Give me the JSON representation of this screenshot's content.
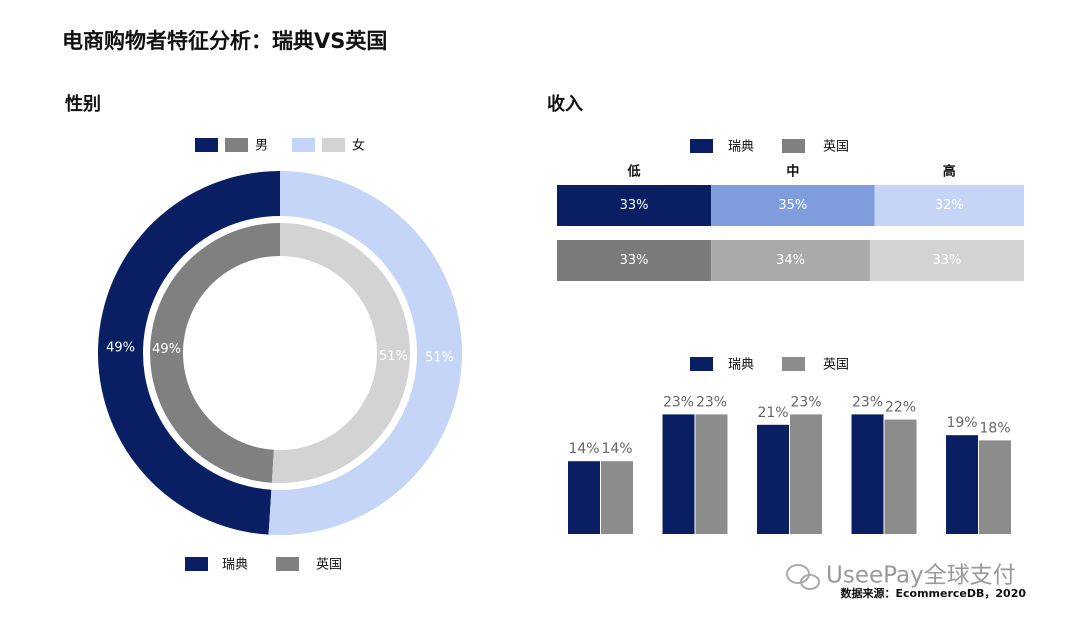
{
  "title": "电商购物者特征分析：瑞典VS英国",
  "source": "数据来源：EcommerceDB，2020",
  "watermark": "UseePay全球支付",
  "chart_data": [
    {
      "type": "pie",
      "title": "性别",
      "categories": [
        "男",
        "女"
      ],
      "series": [
        {
          "name": "瑞典",
          "color": "#0a1f63",
          "colors": [
            "#0a1f63",
            "#c5d5f7"
          ],
          "values": [
            49,
            51
          ],
          "value_labels": [
            "49%",
            "51%"
          ]
        },
        {
          "name": "英国",
          "color": "#808080",
          "colors": [
            "#808080",
            "#d3d3d3"
          ],
          "values": [
            49,
            51
          ],
          "value_labels": [
            "49%",
            "51%"
          ]
        }
      ]
    },
    {
      "type": "stacked-bar",
      "title": "收入",
      "categories": [
        "低",
        "中",
        "高"
      ],
      "series": [
        {
          "name": "瑞典",
          "color": "#0a1f63",
          "colors": [
            "#0a1f63",
            "#7f9ddc",
            "#c5d5f7"
          ],
          "values": [
            33,
            35,
            32
          ],
          "value_labels": [
            "33%",
            "35%",
            "32%"
          ]
        },
        {
          "name": "英国",
          "color": "#808080",
          "colors": [
            "#7a7a7a",
            "#aaaaaa",
            "#d3d3d3"
          ],
          "values": [
            33,
            34,
            33
          ],
          "value_labels": [
            "33%",
            "34%",
            "33%"
          ]
        }
      ]
    },
    {
      "type": "bar",
      "categories": [
        null,
        null,
        null,
        null,
        null
      ],
      "series": [
        {
          "name": "瑞典",
          "color": "#0a1f63",
          "values": [
            14,
            23,
            21,
            23,
            19
          ],
          "value_labels": [
            "14%",
            "23%",
            "21%",
            "23%",
            "19%"
          ]
        },
        {
          "name": "英国",
          "color": "#8c8c8c",
          "values": [
            14,
            23,
            23,
            22,
            18
          ],
          "value_labels": [
            "14%",
            "23%",
            "23%",
            "22%",
            "18%"
          ]
        }
      ]
    }
  ]
}
